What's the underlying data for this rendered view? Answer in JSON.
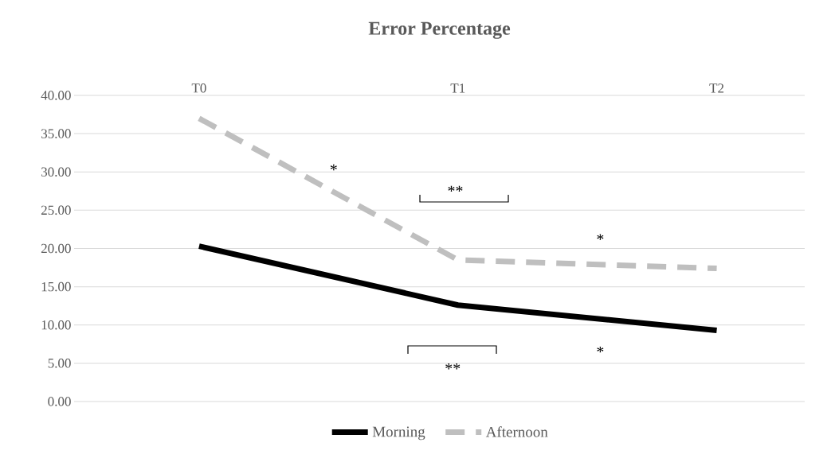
{
  "chart_data": {
    "type": "line",
    "title": "Error Percentage",
    "categories": [
      "T0",
      "T1",
      "T2"
    ],
    "series": [
      {
        "name": "Morning",
        "color": "#000000",
        "line_style": "solid",
        "values": [
          20.3,
          12.6,
          9.3
        ]
      },
      {
        "name": "Afternoon",
        "color": "#bfbfbf",
        "line_style": "dashed",
        "values": [
          37.0,
          18.5,
          17.4
        ]
      }
    ],
    "ylim": [
      0,
      40
    ],
    "yticks": [
      {
        "value": 0,
        "label": "0.00"
      },
      {
        "value": 5,
        "label": "5.00"
      },
      {
        "value": 10,
        "label": "10.00"
      },
      {
        "value": 15,
        "label": "15.00"
      },
      {
        "value": 20,
        "label": "20.00"
      },
      {
        "value": 25,
        "label": "25.00"
      },
      {
        "value": 30,
        "label": "30.00"
      },
      {
        "value": 35,
        "label": "35.00"
      },
      {
        "value": 40,
        "label": "40.00"
      }
    ],
    "grid": "y",
    "legend": "bottom",
    "marker": "none",
    "annotations": [
      "*",
      "**",
      "*",
      "**",
      "*"
    ]
  }
}
